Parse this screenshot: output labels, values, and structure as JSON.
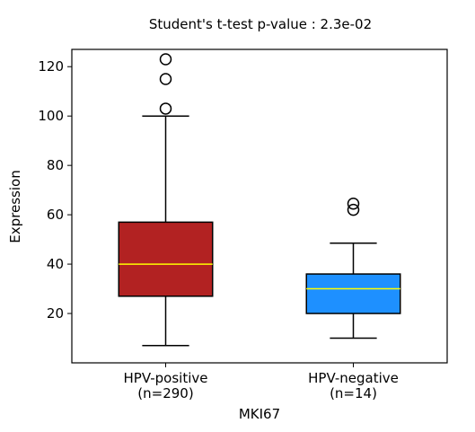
{
  "chart_data": {
    "type": "boxplot",
    "title": "Student's t-test p-value : 2.3e-02",
    "xlabel": "MKI67",
    "ylabel": "Expression",
    "ylim": [
      0,
      127
    ],
    "yticks": [
      20,
      40,
      60,
      80,
      100,
      120
    ],
    "grid": false,
    "categories": [
      {
        "label": "HPV-positive",
        "sublabel": "(n=290)"
      },
      {
        "label": "HPV-negative",
        "sublabel": "(n=14)"
      }
    ],
    "boxes": [
      {
        "name": "HPV-positive",
        "whisker_low": 7,
        "q1": 27,
        "median": 40,
        "q3": 57,
        "whisker_high": 100,
        "outliers": [
          103,
          115,
          123
        ],
        "color": "#b22222"
      },
      {
        "name": "HPV-negative",
        "whisker_low": 10,
        "q1": 20,
        "median": 30,
        "q3": 36,
        "whisker_high": 48.5,
        "outliers": [
          62,
          64.5
        ],
        "color": "#1e90ff"
      }
    ],
    "median_color": "#ffff00"
  }
}
